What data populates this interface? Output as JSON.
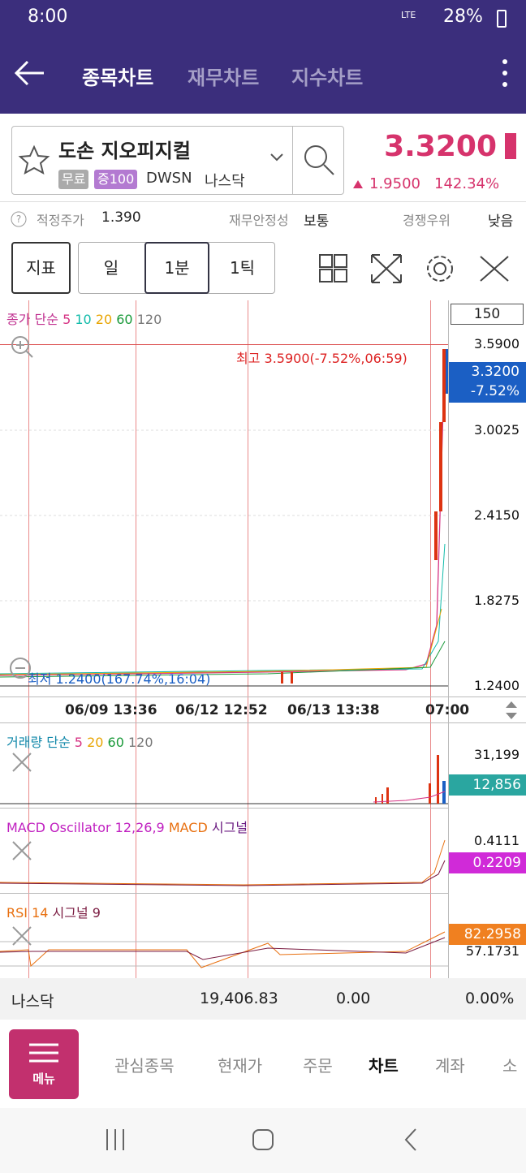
{
  "status_bar": {
    "time": "8:00",
    "network": "LTE",
    "battery": "28%"
  },
  "header": {
    "tabs": [
      "종목차트",
      "재무차트",
      "지수차트"
    ]
  },
  "stock": {
    "name": "도손 지오피지컬",
    "badges": [
      "무료",
      "증100"
    ],
    "ticker": "DWSN",
    "market": "나스닥",
    "price": "3.3200",
    "change": "1.9500",
    "change_pct": "142.34%"
  },
  "info": {
    "fair_price_label": "적정주가",
    "fair_price": "1.390",
    "stability_label": "재무안정성",
    "stability": "보통",
    "competition_label": "경쟁우위",
    "competition": "낮음"
  },
  "toolbar": {
    "indicator": "지표",
    "periods": [
      "일",
      "1분",
      "1틱"
    ]
  },
  "price_chart": {
    "legend": [
      "종가 단순",
      "5",
      "10",
      "20",
      "60",
      "120"
    ],
    "count": "150",
    "y_labels": [
      "3.5900",
      "3.0025",
      "2.4150",
      "1.8275",
      "1.2400"
    ],
    "current": "3.3200",
    "current_pct": "-7.52%",
    "high_label": "최고 3.5900(-7.52%,06:59)",
    "low_label": "최저 1.2400(167.74%,16:04)",
    "x_labels": [
      "06/09 13:36",
      "06/12 12:52",
      "06/13 13:38",
      "07:00"
    ]
  },
  "volume": {
    "legend": [
      "거래량 단순",
      "5",
      "20",
      "60",
      "120"
    ],
    "max": "31,199",
    "current": "12,856"
  },
  "macd": {
    "legend": [
      "MACD Oscillator 12,26,9",
      "MACD",
      "시그널"
    ],
    "max": "0.4111",
    "current": "0.2209"
  },
  "rsi": {
    "legend": [
      "RSI 14",
      "시그널 9"
    ],
    "current": "82.2958",
    "other": "57.1731"
  },
  "index_bar": {
    "name": "나스닥",
    "value": "19,406.83",
    "change": "0.00",
    "change_pct": "0.00%"
  },
  "nav": {
    "menu": "메뉴",
    "items": [
      "관심종목",
      "현재가",
      "주문",
      "차트",
      "계좌",
      "소"
    ]
  }
}
